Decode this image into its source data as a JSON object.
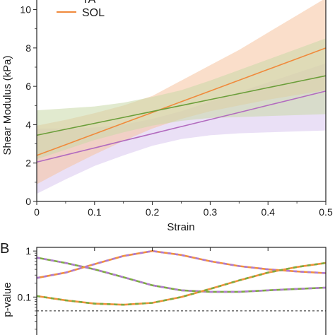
{
  "colors": {
    "TA": "#b26bbf",
    "SOL": "#f08a3c",
    "third": "#6b9e3a",
    "TA_band": "#d9c6ee",
    "SOL_band": "#f6c39e",
    "third_band": "#c8d9a8",
    "pv_green": "#7cab3f",
    "pv_orange": "#f0903c",
    "pv_purple": "#b07ad0"
  },
  "chart_data": [
    {
      "type": "line",
      "panel": "",
      "xlabel": "Strain",
      "ylabel": "Shear Modulus (kPa)",
      "xlim": [
        0,
        0.5
      ],
      "ylim": [
        0,
        10.5
      ],
      "xticks": [
        0,
        0.1,
        0.2,
        0.3,
        0.4,
        0.5
      ],
      "xtick_labels": [
        "0",
        "0.1",
        "0.2",
        "0.3",
        "0.4",
        "0.5"
      ],
      "yticks": [
        0,
        2,
        4,
        6,
        8,
        10
      ],
      "ytick_labels": [
        "0",
        "2",
        "4",
        "6",
        "8",
        "10"
      ],
      "grid": false,
      "legend": {
        "placement": "top-left",
        "entries": [
          {
            "label": "TA",
            "color_key": "TA"
          },
          {
            "label": "SOL",
            "color_key": "SOL"
          }
        ]
      },
      "x": [
        0,
        0.05,
        0.1,
        0.15,
        0.2,
        0.25,
        0.3,
        0.35,
        0.4,
        0.45,
        0.5
      ],
      "series": [
        {
          "name": "TA",
          "color_key": "TA",
          "band_key": "TA_band",
          "values": [
            2.05,
            2.42,
            2.79,
            3.16,
            3.53,
            3.9,
            4.27,
            4.64,
            5.01,
            5.38,
            5.75
          ],
          "lower": [
            0.4,
            1.15,
            1.85,
            2.4,
            2.9,
            3.25,
            3.45,
            3.55,
            3.6,
            3.65,
            3.7
          ],
          "upper": [
            3.8,
            3.8,
            3.85,
            4.0,
            4.3,
            4.7,
            5.2,
            5.7,
            6.2,
            6.7,
            7.2
          ]
        },
        {
          "name": "SOL",
          "color_key": "SOL",
          "band_key": "SOL_band",
          "values": [
            2.4,
            2.96,
            3.52,
            4.08,
            4.64,
            5.2,
            5.76,
            6.32,
            6.88,
            7.44,
            8.0
          ],
          "lower": [
            0.9,
            1.7,
            2.45,
            3.15,
            3.8,
            4.3,
            4.7,
            5.0,
            5.3,
            5.55,
            5.8
          ],
          "upper": [
            3.95,
            4.25,
            4.6,
            5.0,
            5.5,
            6.3,
            7.1,
            7.9,
            8.8,
            9.7,
            10.6
          ]
        },
        {
          "color_key": "third",
          "band_key": "third_band",
          "values": [
            3.45,
            3.76,
            4.07,
            4.38,
            4.69,
            5.0,
            5.31,
            5.62,
            5.93,
            6.24,
            6.55
          ],
          "lower": [
            2.2,
            2.7,
            3.2,
            3.6,
            3.95,
            4.2,
            4.35,
            4.4,
            4.45,
            4.5,
            4.55
          ],
          "upper": [
            4.75,
            4.85,
            4.95,
            5.15,
            5.45,
            5.8,
            6.3,
            6.85,
            7.4,
            7.95,
            8.5
          ]
        }
      ]
    },
    {
      "type": "line",
      "panel": "B",
      "xlabel": "",
      "ylabel": "p-value",
      "yscale": "log",
      "xlim": [
        0,
        0.5
      ],
      "ylim": [
        0.015,
        1.2
      ],
      "yticks": [
        0.1,
        1
      ],
      "ytick_labels": [
        "0.1",
        "1"
      ],
      "threshold": 0.05,
      "x": [
        0,
        0.05,
        0.1,
        0.15,
        0.2,
        0.25,
        0.3,
        0.35,
        0.4,
        0.45,
        0.5
      ],
      "series": [
        {
          "stroke_key": "pv_green",
          "dash_key": "pv_purple",
          "values": [
            0.72,
            0.55,
            0.4,
            0.27,
            0.18,
            0.14,
            0.13,
            0.13,
            0.14,
            0.15,
            0.16
          ]
        },
        {
          "stroke_key": "pv_orange",
          "dash_key": "pv_purple",
          "values": [
            0.26,
            0.34,
            0.52,
            0.78,
            1.0,
            0.82,
            0.6,
            0.47,
            0.4,
            0.36,
            0.33
          ]
        },
        {
          "stroke_key": "pv_orange",
          "dash_key": "pv_green",
          "values": [
            0.105,
            0.085,
            0.072,
            0.068,
            0.075,
            0.1,
            0.15,
            0.23,
            0.34,
            0.45,
            0.55
          ]
        }
      ]
    }
  ]
}
